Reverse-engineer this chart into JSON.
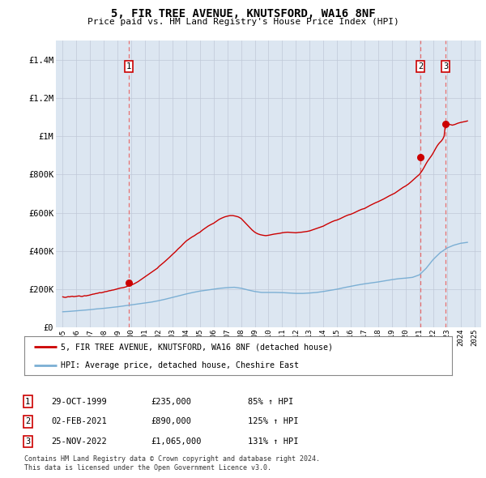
{
  "title": "5, FIR TREE AVENUE, KNUTSFORD, WA16 8NF",
  "subtitle": "Price paid vs. HM Land Registry's House Price Index (HPI)",
  "plot_bg_color": "#dce6f1",
  "outer_bg_color": "#ffffff",
  "red_line_color": "#cc0000",
  "blue_line_color": "#7bafd4",
  "dashed_line_color": "#e87070",
  "ylim": [
    0,
    1500000
  ],
  "yticks": [
    0,
    200000,
    400000,
    600000,
    800000,
    1000000,
    1200000,
    1400000
  ],
  "ytick_labels": [
    "£0",
    "£200K",
    "£400K",
    "£600K",
    "£800K",
    "£1M",
    "£1.2M",
    "£1.4M"
  ],
  "xlim_start": 1994.5,
  "xlim_end": 2025.5,
  "xticks": [
    1995,
    1996,
    1997,
    1998,
    1999,
    2000,
    2001,
    2002,
    2003,
    2004,
    2005,
    2006,
    2007,
    2008,
    2009,
    2010,
    2011,
    2012,
    2013,
    2014,
    2015,
    2016,
    2017,
    2018,
    2019,
    2020,
    2021,
    2022,
    2023,
    2024,
    2025
  ],
  "sale_dates": [
    1999.83,
    2021.08,
    2022.9
  ],
  "sale_prices": [
    235000,
    890000,
    1065000
  ],
  "sale_labels": [
    "1",
    "2",
    "3"
  ],
  "legend_red": "5, FIR TREE AVENUE, KNUTSFORD, WA16 8NF (detached house)",
  "legend_blue": "HPI: Average price, detached house, Cheshire East",
  "table_data": [
    [
      "1",
      "29-OCT-1999",
      "£235,000",
      "85% ↑ HPI"
    ],
    [
      "2",
      "02-FEB-2021",
      "£890,000",
      "125% ↑ HPI"
    ],
    [
      "3",
      "25-NOV-2022",
      "£1,065,000",
      "131% ↑ HPI"
    ]
  ],
  "footnote1": "Contains HM Land Registry data © Crown copyright and database right 2024.",
  "footnote2": "This data is licensed under the Open Government Licence v3.0.",
  "red_x": [
    1995.0,
    1995.1,
    1995.2,
    1995.3,
    1995.4,
    1995.5,
    1995.6,
    1995.7,
    1995.8,
    1995.9,
    1996.0,
    1996.1,
    1996.2,
    1996.3,
    1996.4,
    1996.5,
    1996.6,
    1996.7,
    1996.8,
    1996.9,
    1997.0,
    1997.1,
    1997.2,
    1997.3,
    1997.4,
    1997.5,
    1997.6,
    1997.7,
    1997.8,
    1997.9,
    1998.0,
    1998.1,
    1998.2,
    1998.3,
    1998.4,
    1998.5,
    1998.6,
    1998.7,
    1998.8,
    1998.9,
    1999.0,
    1999.1,
    1999.2,
    1999.3,
    1999.4,
    1999.5,
    1999.6,
    1999.7,
    1999.8,
    1999.9,
    2000.0,
    2000.1,
    2000.2,
    2000.3,
    2000.4,
    2000.5,
    2000.6,
    2000.7,
    2000.8,
    2000.9,
    2001.0,
    2001.1,
    2001.2,
    2001.3,
    2001.4,
    2001.5,
    2001.6,
    2001.7,
    2001.8,
    2001.9,
    2002.0,
    2002.2,
    2002.4,
    2002.6,
    2002.8,
    2003.0,
    2003.2,
    2003.4,
    2003.6,
    2003.8,
    2004.0,
    2004.2,
    2004.4,
    2004.6,
    2004.8,
    2005.0,
    2005.2,
    2005.4,
    2005.6,
    2005.8,
    2006.0,
    2006.2,
    2006.4,
    2006.6,
    2006.8,
    2007.0,
    2007.2,
    2007.4,
    2007.6,
    2007.8,
    2008.0,
    2008.2,
    2008.4,
    2008.6,
    2008.8,
    2009.0,
    2009.2,
    2009.4,
    2009.6,
    2009.8,
    2010.0,
    2010.2,
    2010.4,
    2010.6,
    2010.8,
    2011.0,
    2011.2,
    2011.4,
    2011.6,
    2011.8,
    2012.0,
    2012.2,
    2012.4,
    2012.6,
    2012.8,
    2013.0,
    2013.2,
    2013.4,
    2013.6,
    2013.8,
    2014.0,
    2014.2,
    2014.4,
    2014.6,
    2014.8,
    2015.0,
    2015.2,
    2015.4,
    2015.6,
    2015.8,
    2016.0,
    2016.2,
    2016.4,
    2016.6,
    2016.8,
    2017.0,
    2017.2,
    2017.4,
    2017.6,
    2017.8,
    2018.0,
    2018.2,
    2018.4,
    2018.6,
    2018.8,
    2019.0,
    2019.2,
    2019.4,
    2019.6,
    2019.8,
    2020.0,
    2020.2,
    2020.4,
    2020.6,
    2020.8,
    2021.0,
    2021.1,
    2021.2,
    2021.3,
    2021.4,
    2021.5,
    2021.6,
    2021.7,
    2021.8,
    2021.9,
    2022.0,
    2022.1,
    2022.2,
    2022.3,
    2022.4,
    2022.5,
    2022.6,
    2022.7,
    2022.8,
    2022.9,
    2023.0,
    2023.2,
    2023.4,
    2023.6,
    2023.8,
    2024.0,
    2024.2,
    2024.4,
    2024.5
  ],
  "red_y": [
    160000,
    158000,
    157000,
    159000,
    161000,
    160000,
    162000,
    163000,
    161000,
    162000,
    163000,
    164000,
    165000,
    163000,
    162000,
    164000,
    166000,
    165000,
    167000,
    168000,
    170000,
    172000,
    174000,
    175000,
    177000,
    178000,
    180000,
    182000,
    181000,
    183000,
    185000,
    187000,
    188000,
    190000,
    192000,
    193000,
    195000,
    196000,
    198000,
    200000,
    202000,
    204000,
    206000,
    207000,
    208000,
    210000,
    212000,
    215000,
    218000,
    220000,
    222000,
    225000,
    228000,
    232000,
    236000,
    240000,
    245000,
    250000,
    255000,
    260000,
    265000,
    270000,
    275000,
    280000,
    285000,
    290000,
    295000,
    300000,
    305000,
    310000,
    318000,
    330000,
    342000,
    355000,
    368000,
    382000,
    395000,
    410000,
    423000,
    438000,
    452000,
    462000,
    472000,
    480000,
    490000,
    498000,
    510000,
    520000,
    530000,
    538000,
    545000,
    555000,
    565000,
    572000,
    578000,
    582000,
    585000,
    585000,
    582000,
    578000,
    570000,
    555000,
    540000,
    525000,
    510000,
    498000,
    490000,
    485000,
    482000,
    480000,
    482000,
    485000,
    488000,
    490000,
    492000,
    495000,
    497000,
    498000,
    497000,
    496000,
    495000,
    497000,
    498000,
    500000,
    502000,
    505000,
    510000,
    515000,
    520000,
    525000,
    530000,
    538000,
    545000,
    552000,
    558000,
    562000,
    568000,
    575000,
    582000,
    588000,
    592000,
    598000,
    605000,
    612000,
    618000,
    622000,
    630000,
    638000,
    645000,
    652000,
    658000,
    665000,
    672000,
    680000,
    688000,
    695000,
    702000,
    712000,
    722000,
    732000,
    740000,
    750000,
    762000,
    775000,
    788000,
    800000,
    810000,
    820000,
    832000,
    845000,
    858000,
    870000,
    880000,
    890000,
    900000,
    912000,
    925000,
    938000,
    950000,
    960000,
    968000,
    975000,
    985000,
    1000000,
    1065000,
    1070000,
    1062000,
    1058000,
    1062000,
    1068000,
    1072000,
    1075000,
    1078000,
    1080000
  ],
  "blue_x": [
    1995.0,
    1995.5,
    1996.0,
    1996.5,
    1997.0,
    1997.5,
    1998.0,
    1998.5,
    1999.0,
    1999.5,
    2000.0,
    2000.5,
    2001.0,
    2001.5,
    2002.0,
    2002.5,
    2003.0,
    2003.5,
    2004.0,
    2004.5,
    2005.0,
    2005.5,
    2006.0,
    2006.5,
    2007.0,
    2007.5,
    2008.0,
    2008.5,
    2009.0,
    2009.5,
    2010.0,
    2010.5,
    2011.0,
    2011.5,
    2012.0,
    2012.5,
    2013.0,
    2013.5,
    2014.0,
    2014.5,
    2015.0,
    2015.5,
    2016.0,
    2016.5,
    2017.0,
    2017.5,
    2018.0,
    2018.5,
    2019.0,
    2019.5,
    2020.0,
    2020.5,
    2021.0,
    2021.5,
    2022.0,
    2022.5,
    2023.0,
    2023.5,
    2024.0,
    2024.5
  ],
  "blue_y": [
    82000,
    84000,
    87000,
    90000,
    93000,
    97000,
    100000,
    104000,
    108000,
    113000,
    118000,
    123000,
    128000,
    133000,
    140000,
    148000,
    157000,
    166000,
    175000,
    183000,
    190000,
    195000,
    200000,
    205000,
    208000,
    210000,
    205000,
    196000,
    188000,
    183000,
    183000,
    183000,
    182000,
    180000,
    178000,
    178000,
    180000,
    183000,
    188000,
    194000,
    200000,
    208000,
    215000,
    222000,
    228000,
    233000,
    238000,
    244000,
    250000,
    255000,
    258000,
    262000,
    275000,
    310000,
    355000,
    390000,
    415000,
    430000,
    440000,
    445000
  ]
}
